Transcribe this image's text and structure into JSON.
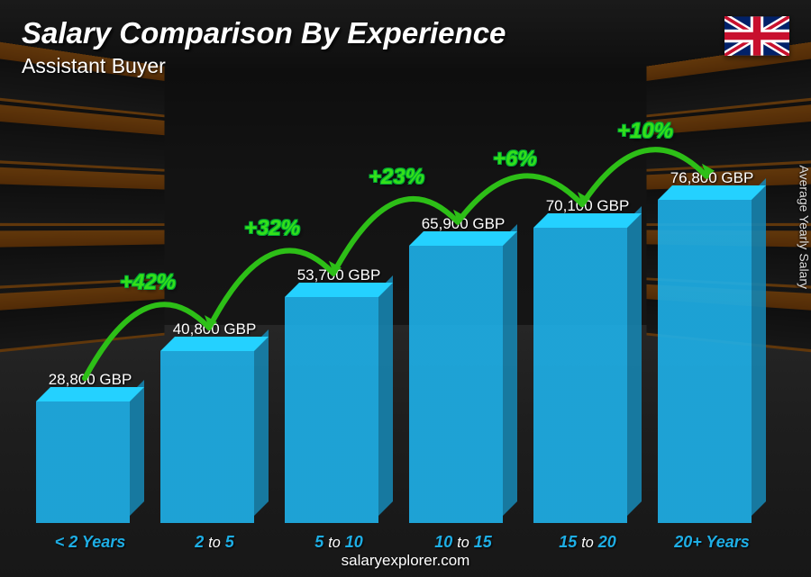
{
  "header": {
    "title": "Salary Comparison By Experience",
    "subtitle": "Assistant Buyer",
    "flag_country": "United Kingdom"
  },
  "y_axis_label": "Average Yearly Salary",
  "footer": "salaryexplorer.com",
  "chart": {
    "type": "bar",
    "currency": "GBP",
    "bar_color": "#1eaee5",
    "label_color": "#1eaee5",
    "pct_color": "#34e01a",
    "arc_color": "#2dbf17",
    "background_darken": 0.55,
    "max_value": 90000,
    "bars": [
      {
        "label_pre": "< 2",
        "label_mid": "",
        "label_post": "Years",
        "value": 28800,
        "value_text": "28,800 GBP"
      },
      {
        "label_pre": "2",
        "label_mid": "to",
        "label_post": "5",
        "value": 40800,
        "value_text": "40,800 GBP",
        "pct": "+42%"
      },
      {
        "label_pre": "5",
        "label_mid": "to",
        "label_post": "10",
        "value": 53700,
        "value_text": "53,700 GBP",
        "pct": "+32%"
      },
      {
        "label_pre": "10",
        "label_mid": "to",
        "label_post": "15",
        "value": 65900,
        "value_text": "65,900 GBP",
        "pct": "+23%"
      },
      {
        "label_pre": "15",
        "label_mid": "to",
        "label_post": "20",
        "value": 70100,
        "value_text": "70,100 GBP",
        "pct": "+6%"
      },
      {
        "label_pre": "20+",
        "label_mid": "",
        "label_post": "Years",
        "value": 76800,
        "value_text": "76,800 GBP",
        "pct": "+10%"
      }
    ]
  },
  "flag": {
    "bg": "#012169",
    "white": "#ffffff",
    "red": "#C8102E"
  }
}
